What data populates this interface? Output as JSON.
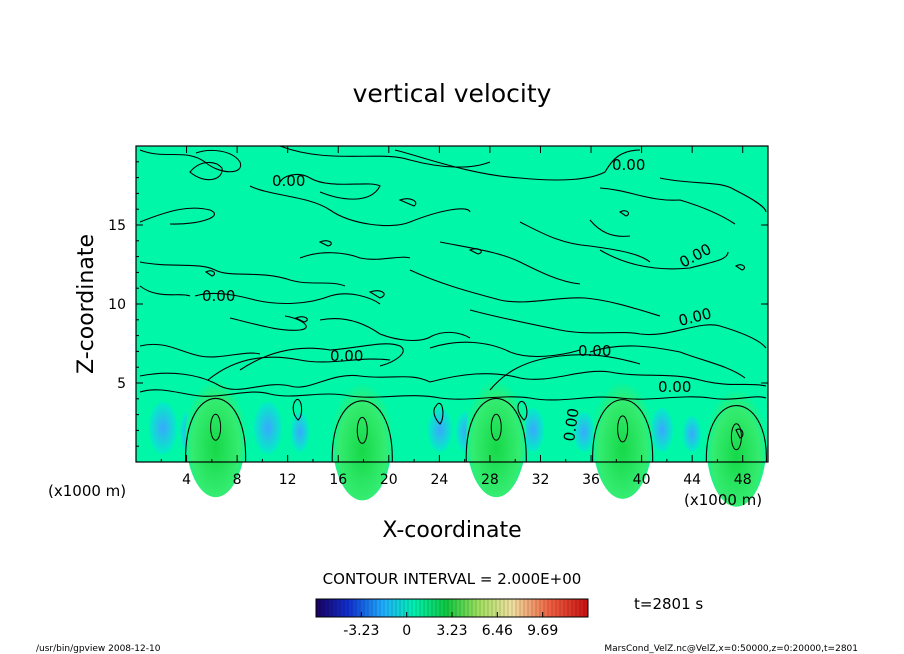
{
  "chart_data": {
    "type": "heatmap",
    "title": "vertical velocity",
    "xlabel": "X-coordinate",
    "ylabel": "Z-coordinate",
    "x_unit": "(x1000 m)",
    "y_unit": "(x1000 m)",
    "xlim": [
      0,
      50
    ],
    "ylim": [
      0,
      20
    ],
    "x_ticks": [
      4,
      8,
      12,
      16,
      20,
      24,
      28,
      32,
      36,
      40,
      44,
      48
    ],
    "y_ticks": [
      5,
      10,
      15
    ],
    "contour_labels": [
      "0.00",
      "0.00",
      "0.00",
      "0.00",
      "0.00",
      "0.00",
      "0.00",
      "0.00",
      "0.00"
    ],
    "contour_interval": "CONTOUR INTERVAL = 2.000E+00",
    "colorbar": {
      "ticks": [
        "-3.23",
        "0",
        "3.23",
        "6.46",
        "9.69"
      ],
      "range": [
        -6.46,
        12.92
      ]
    },
    "updrafts": [
      {
        "x": 6.3,
        "z": 2.2
      },
      {
        "x": 17.9,
        "z": 2.0
      },
      {
        "x": 28.5,
        "z": 2.2
      },
      {
        "x": 38.5,
        "z": 2.1
      },
      {
        "x": 47.5,
        "z": 1.6
      }
    ],
    "time_label": "t=2801 s",
    "colors": {
      "background_field": "#00f7a8",
      "updraft": "#16e85a",
      "downdraft": "#22c6ff"
    }
  },
  "footer": {
    "left": "/usr/bin/gpview   2008-12-10",
    "right": "MarsCond_VelZ.nc@VelZ,x=0:50000,z=0:20000,t=2801"
  }
}
